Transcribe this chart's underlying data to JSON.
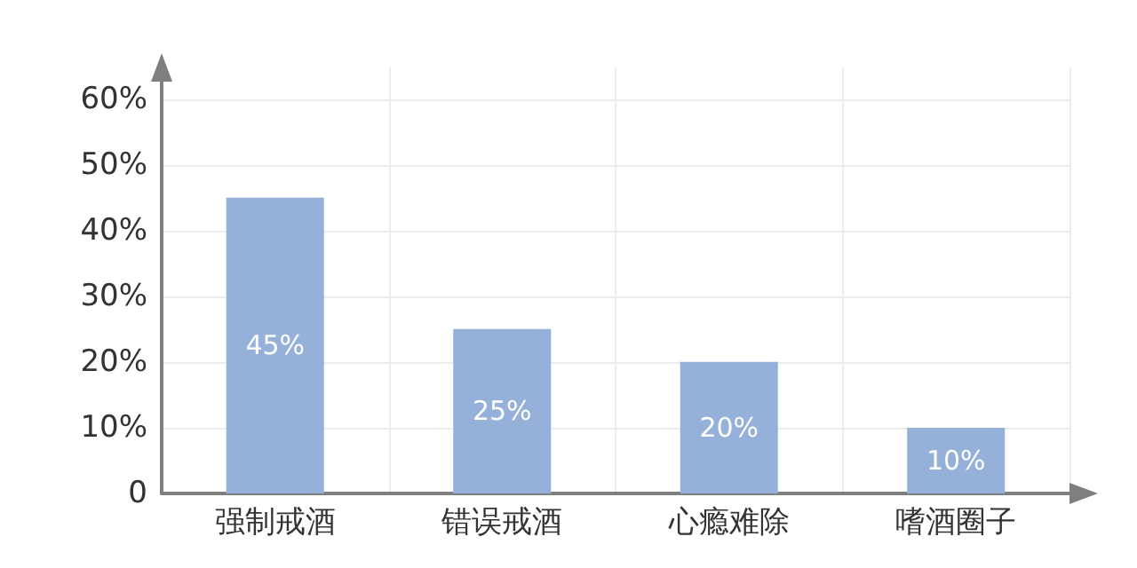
{
  "chart_data": {
    "type": "bar",
    "categories": [
      "强制戒酒",
      "错误戒酒",
      "心瘾难除",
      "嗜酒圈子"
    ],
    "values": [
      45,
      25,
      20,
      10
    ],
    "color": "#95b1d9",
    "value_labels": [
      "45%",
      "25%",
      "20%",
      "10%"
    ],
    "ylim": [
      0,
      60
    ],
    "yticks": [
      0,
      {
        "value": 10,
        "label": "10%"
      },
      {
        "value": 20,
        "label": "20%"
      },
      {
        "value": 30,
        "label": "30%"
      },
      {
        "value": 40,
        "label": "40%"
      },
      {
        "value": 50,
        "label": "50%"
      },
      {
        "value": 60,
        "label": "60%"
      }
    ],
    "grid": true
  }
}
